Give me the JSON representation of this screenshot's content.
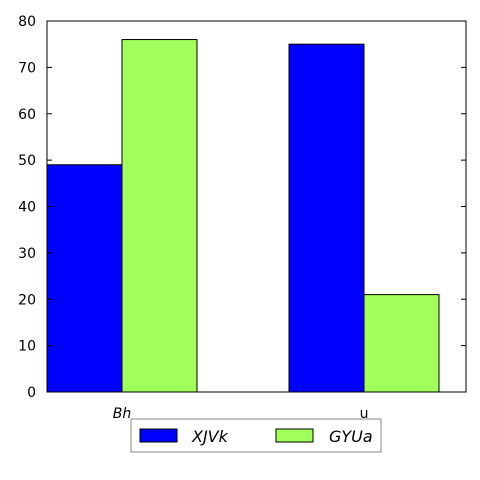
{
  "chart_data": {
    "type": "bar",
    "categories": [
      "Bh",
      "u"
    ],
    "category_label_italic": [
      true,
      false
    ],
    "series": [
      {
        "name": "XJVk",
        "values": [
          49,
          75
        ],
        "color": "#0000ff"
      },
      {
        "name": "GYUa",
        "values": [
          76,
          21
        ],
        "color": "#a0ff5a"
      }
    ],
    "ylim": [
      0,
      80
    ],
    "yticks": [
      0,
      10,
      20,
      30,
      40,
      50,
      60,
      70,
      80
    ],
    "ytick_labels": [
      "0",
      "10",
      "20",
      "30",
      "40",
      "50",
      "60",
      "70",
      "80"
    ],
    "grid": false,
    "legend_position": "bottom",
    "title": "",
    "xlabel": "",
    "ylabel": ""
  }
}
